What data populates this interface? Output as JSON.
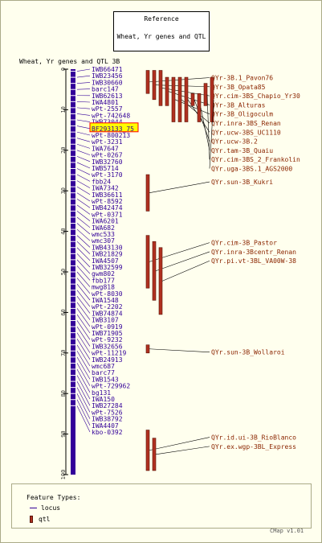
{
  "reference": {
    "line1": "Reference",
    "line2": "Wheat, Yr genes and QTL"
  },
  "map_title": "Wheat, Yr genes and QTL 3B",
  "ruler": {
    "ticks": [
      0,
      10,
      20,
      30,
      40,
      50,
      60,
      70,
      80,
      90,
      100
    ]
  },
  "highlighted_locus": "BF293133_75",
  "loci": [
    {
      "name": "IWB66471",
      "pos": 0.5
    },
    {
      "name": "IWB23456",
      "pos": 2.0
    },
    {
      "name": "IWB30660",
      "pos": 3.5
    },
    {
      "name": "barc147",
      "pos": 5.0
    },
    {
      "name": "IWB62613",
      "pos": 6.5
    },
    {
      "name": "IWA4801",
      "pos": 8.0
    },
    {
      "name": "wPt-2557",
      "pos": 9.5
    },
    {
      "name": "wPt-742648",
      "pos": 11.0
    },
    {
      "name": "IWB73044",
      "pos": 12.5
    },
    {
      "name": "BF293133_75",
      "pos": 14.0
    },
    {
      "name": "wPt-800213",
      "pos": 15.5
    },
    {
      "name": "wPt-3231",
      "pos": 17.0
    },
    {
      "name": "IWA7647",
      "pos": 18.5
    },
    {
      "name": "wPt-0267",
      "pos": 20.0
    },
    {
      "name": "IWB32760",
      "pos": 21.5
    },
    {
      "name": "IWB5714",
      "pos": 23.0
    },
    {
      "name": "wPt-3170",
      "pos": 24.5
    },
    {
      "name": "fbb24",
      "pos": 26.0
    },
    {
      "name": "IWA7342",
      "pos": 27.5
    },
    {
      "name": "IWB36611",
      "pos": 29.0
    },
    {
      "name": "wPt-8592",
      "pos": 30.5
    },
    {
      "name": "IWB42474",
      "pos": 32.0
    },
    {
      "name": "wPt-0371",
      "pos": 33.5
    },
    {
      "name": "IWA6201",
      "pos": 35.0
    },
    {
      "name": "IWA682",
      "pos": 36.5
    },
    {
      "name": "wmc533",
      "pos": 38.0
    },
    {
      "name": "wmc307",
      "pos": 39.5
    },
    {
      "name": "IWB43130",
      "pos": 41.0
    },
    {
      "name": "IWB21829",
      "pos": 42.5
    },
    {
      "name": "IWA4507",
      "pos": 44.0
    },
    {
      "name": "IWB32599",
      "pos": 45.5
    },
    {
      "name": "gwm802",
      "pos": 47.0
    },
    {
      "name": "fbb177",
      "pos": 48.5
    },
    {
      "name": "mwg818",
      "pos": 50.0
    },
    {
      "name": "wPt-8030",
      "pos": 51.5
    },
    {
      "name": "IWA1548",
      "pos": 53.0
    },
    {
      "name": "wPt-2202",
      "pos": 54.5
    },
    {
      "name": "IWB74874",
      "pos": 56.0
    },
    {
      "name": "IWB3107",
      "pos": 57.5
    },
    {
      "name": "wPt-0919",
      "pos": 59.0
    },
    {
      "name": "IWB71905",
      "pos": 60.5
    },
    {
      "name": "wPt-9232",
      "pos": 62.0
    },
    {
      "name": "IWB32656",
      "pos": 63.5
    },
    {
      "name": "wPt-11219",
      "pos": 65.0
    },
    {
      "name": "IWB24913",
      "pos": 66.5
    },
    {
      "name": "wmc687",
      "pos": 68.0
    },
    {
      "name": "barc77",
      "pos": 69.5
    },
    {
      "name": "IWB1543",
      "pos": 71.0
    },
    {
      "name": "wPt-729962",
      "pos": 72.5
    },
    {
      "name": "bg131",
      "pos": 74.0
    },
    {
      "name": "IWA150",
      "pos": 75.5
    },
    {
      "name": "IWB27284",
      "pos": 77.0
    },
    {
      "name": "wPt-7526",
      "pos": 78.5
    },
    {
      "name": "IWB38792",
      "pos": 80.0
    },
    {
      "name": "IWA4407",
      "pos": 81.5
    },
    {
      "name": "kbo-0392",
      "pos": 83.0
    }
  ],
  "qtls": [
    {
      "name": "QYr-3B.1_Pavon76",
      "start": 0.3,
      "end": 6.0
    },
    {
      "name": "QYr-3B_Opata85",
      "start": 0.3,
      "end": 7.5
    },
    {
      "name": "QYr.cim-3BS_Chapio_Yr30",
      "start": 0.3,
      "end": 9.0
    },
    {
      "name": "QYr-3B_Alturas",
      "start": 2.0,
      "end": 9.0
    },
    {
      "name": "QYr-3B_Oligoculm",
      "start": 2.0,
      "end": 13.0
    },
    {
      "name": "QYr.inra-3BS_Renan",
      "start": 2.0,
      "end": 13.0
    },
    {
      "name": "QYr.ucw-3BS_UC1110",
      "start": 2.0,
      "end": 13.0
    },
    {
      "name": "QYr.ucw-3B.2",
      "start": 6.0,
      "end": 9.0
    },
    {
      "name": "QYr.tam-3B_Quaiu",
      "start": 6.0,
      "end": 13.0
    },
    {
      "name": "QYr.cim-3BS_2_Frankolin",
      "start": 3.5,
      "end": 9.0
    },
    {
      "name": "QYr.uga-3BS.1_AGS2000",
      "start": 2.0,
      "end": 13.0
    },
    {
      "name": "QYr.sun-3B_Kukri",
      "start": 26.0,
      "end": 35.0
    },
    {
      "name": "QYr.cim-3B_Pastor",
      "start": 41.0,
      "end": 54.0
    },
    {
      "name": "QYr.inra-3Bcentr_Renan",
      "start": 42.5,
      "end": 57.0
    },
    {
      "name": "QYr.pi.vt-3BL_VA00W-38",
      "start": 44.0,
      "end": 60.5
    },
    {
      "name": "QYr.sun-3B_Wollaroi",
      "start": 68.0,
      "end": 70.0
    },
    {
      "name": "QYr.id.ui-3B_RioBlanco",
      "start": 89.0,
      "end": 99.0
    },
    {
      "name": "QYr.ex.wgp-3BL_Express",
      "start": 91.0,
      "end": 99.0
    }
  ],
  "legend": {
    "title": "Feature Types:",
    "locus_label": "locus",
    "qtl_label": "qtl"
  },
  "footer": "CMap v1.01",
  "colors": {
    "chromosome": "#330099",
    "qtl_fill": "#b03020",
    "qtl_border": "#5a1408",
    "highlight": "#ffff00"
  }
}
